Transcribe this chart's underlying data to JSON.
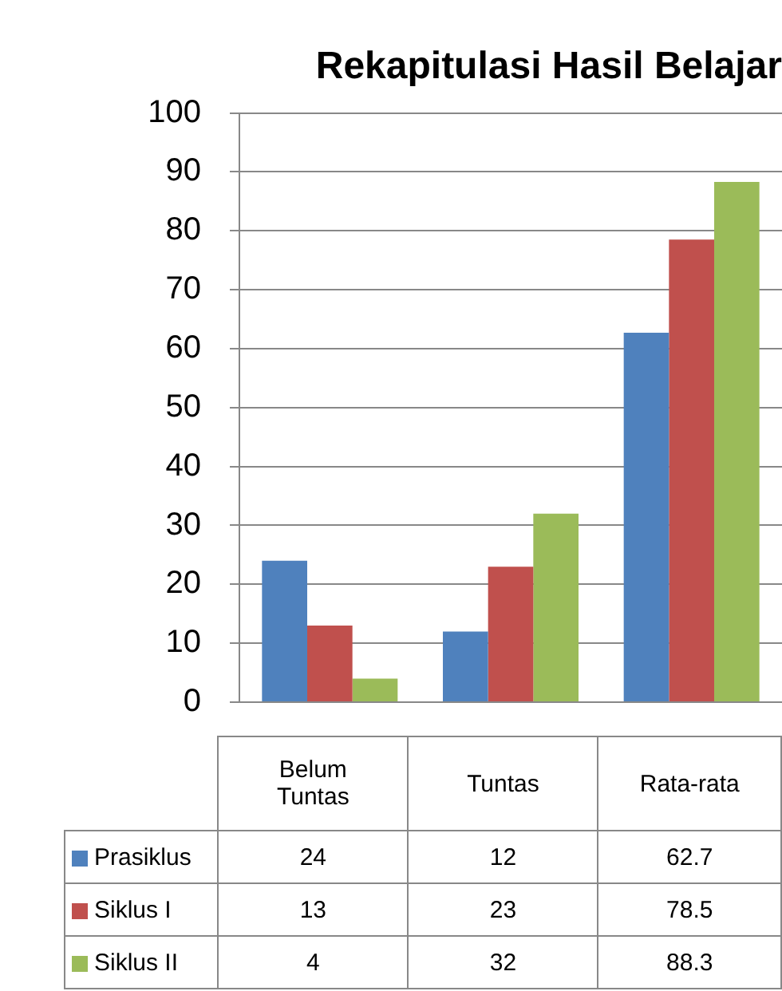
{
  "chart_data": {
    "type": "bar",
    "title": "Rekapitulasi Hasil Belajar",
    "categories": [
      "Belum Tuntas",
      "Tuntas",
      "Rata-rata"
    ],
    "series": [
      {
        "name": "Prasiklus",
        "color": "#4f81bd",
        "values": [
          24,
          12,
          62.7
        ]
      },
      {
        "name": "Siklus I",
        "color": "#c0504d",
        "values": [
          13,
          23,
          78.5
        ]
      },
      {
        "name": "Siklus II",
        "color": "#9bbb59",
        "values": [
          4,
          32,
          88.3
        ]
      }
    ],
    "ylim": [
      0,
      100
    ],
    "yticks": [
      0,
      10,
      20,
      30,
      40,
      50,
      60,
      70,
      80,
      90,
      100
    ],
    "grid": "y",
    "legend": "bottom",
    "data_labels": true
  }
}
